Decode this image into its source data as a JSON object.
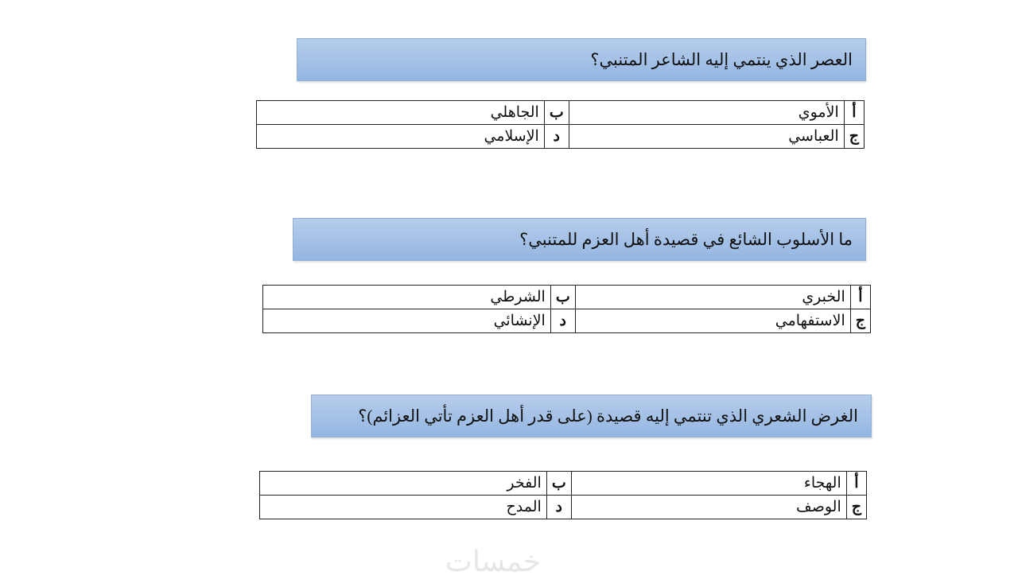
{
  "questions": [
    {
      "text": "العصر الذي ينتمي إليه الشاعر المتنبي؟",
      "options": [
        {
          "letter": "أ",
          "text": "الأموي"
        },
        {
          "letter": "ب",
          "text": "الجاهلي"
        },
        {
          "letter": "ج",
          "text": "العباسي"
        },
        {
          "letter": "د",
          "text": "الإسلامي"
        }
      ]
    },
    {
      "text": "ما الأسلوب الشائع في قصيدة أهل العزم للمتنبي؟",
      "options": [
        {
          "letter": "أ",
          "text": "الخبري"
        },
        {
          "letter": "ب",
          "text": "الشرطي"
        },
        {
          "letter": "ج",
          "text": "الاستفهامي"
        },
        {
          "letter": "د",
          "text": "الإنشائي"
        }
      ]
    },
    {
      "text": "الغرض الشعري الذي تنتمي إليه قصيدة (على قدر أهل العزم تأتي العزائم)؟",
      "options": [
        {
          "letter": "أ",
          "text": "الهجاء"
        },
        {
          "letter": "ب",
          "text": "الفخر"
        },
        {
          "letter": "ج",
          "text": "الوصف"
        },
        {
          "letter": "د",
          "text": "المدح"
        }
      ]
    }
  ],
  "watermark": "خمسات"
}
